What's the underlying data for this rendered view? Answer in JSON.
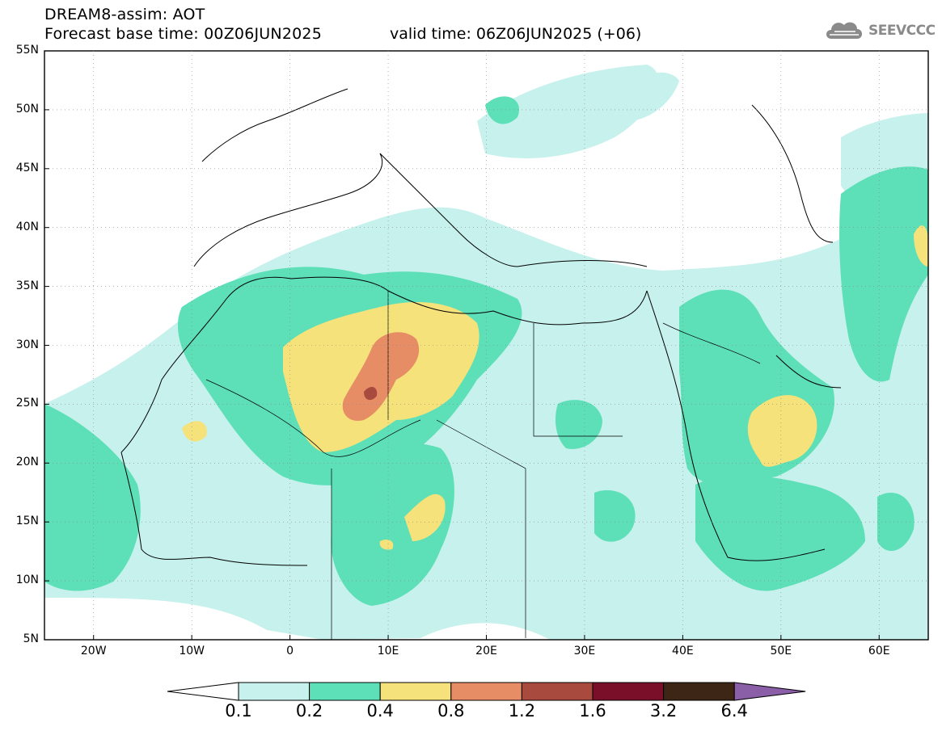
{
  "header": {
    "title": "DREAM8-assim: AOT",
    "forecast": "Forecast base time: 00Z06JUN2025",
    "valid": "valid time: 06Z06JUN2025 (+06)"
  },
  "logo": {
    "text": "SEEVCCC",
    "icon": "cloud-icon"
  },
  "map": {
    "lon_range": [
      -25,
      65
    ],
    "lat_range": [
      5,
      55
    ],
    "lat_labels": [
      "55N",
      "50N",
      "45N",
      "40N",
      "35N",
      "30N",
      "25N",
      "20N",
      "15N",
      "10N",
      "5N"
    ],
    "lon_labels": [
      "20W",
      "10W",
      "0",
      "10E",
      "20E",
      "30E",
      "40E",
      "50E",
      "60E"
    ]
  },
  "legend": {
    "colors": [
      "#c6f1ec",
      "#5ddfb7",
      "#f6e27b",
      "#e78d66",
      "#a94a3e",
      "#7a0f2a",
      "#3e2616",
      "#8a5fa8"
    ],
    "under_color": "#ffffff",
    "ticks": [
      "0.1",
      "0.2",
      "0.4",
      "0.8",
      "1.2",
      "1.6",
      "3.2",
      "6.4"
    ]
  }
}
